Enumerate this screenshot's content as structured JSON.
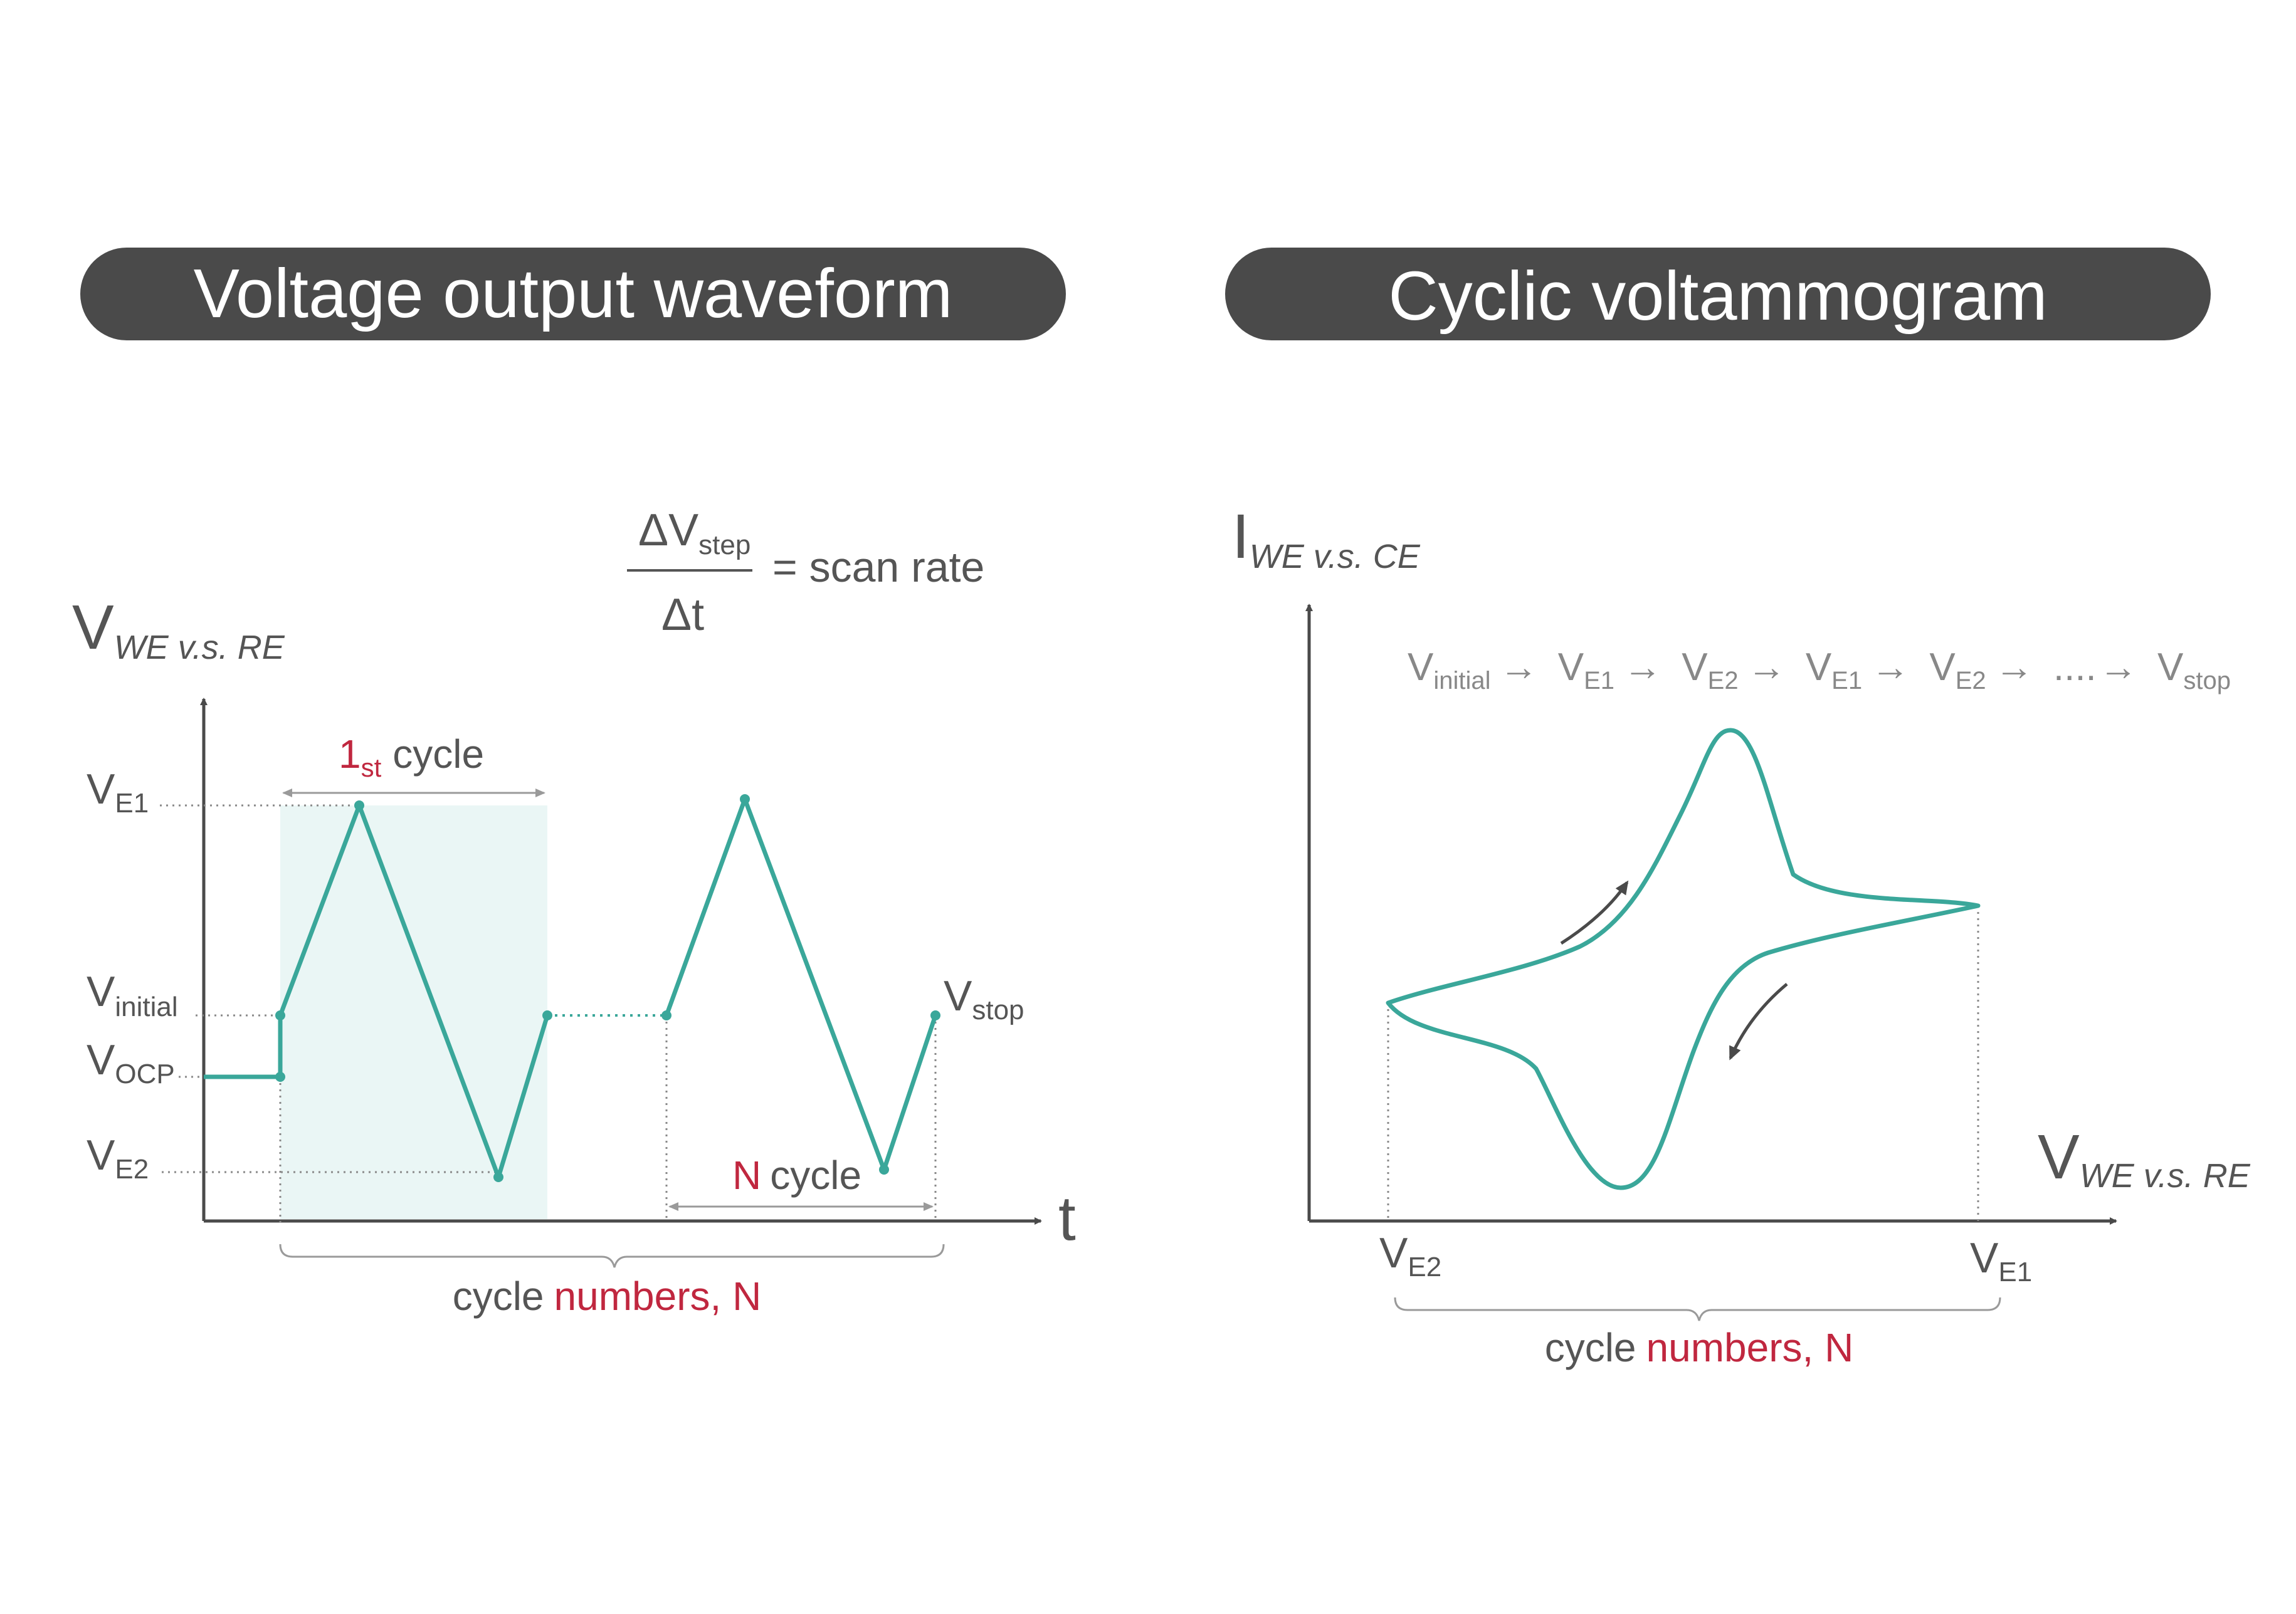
{
  "colors": {
    "accent": "#3aa79a",
    "highlight": "#c0273f",
    "dark": "#4a4a4a",
    "text": "#555555",
    "muted": "#888888",
    "shade": "#eaf6f5"
  },
  "left_panel": {
    "title": "Voltage output waveform",
    "y_axis": {
      "main": "V",
      "sub": "WE v.s. RE"
    },
    "x_axis": {
      "label": "t"
    },
    "scan_rate": {
      "numerator": "ΔV",
      "numerator_sub": "step",
      "denominator": "Δt",
      "equals": "= scan rate"
    },
    "levels": {
      "ve1": {
        "main": "V",
        "sub": "E1"
      },
      "vinitial": {
        "main": "V",
        "sub": "initial"
      },
      "vocp": {
        "main": "V",
        "sub": "OCP"
      },
      "ve2": {
        "main": "V",
        "sub": "E2"
      },
      "vstop": {
        "main": "V",
        "sub": "stop"
      }
    },
    "first_cycle": {
      "num": "1",
      "sub": "st",
      "word": "cycle"
    },
    "n_cycle": {
      "n": "N",
      "word": "cycle"
    },
    "cycle_numbers": {
      "word": "cycle",
      "rest": "numbers, N"
    }
  },
  "right_panel": {
    "title": "Cyclic voltammogram",
    "y_axis": {
      "main": "I",
      "sub": "WE v.s. CE"
    },
    "x_axis": {
      "main": "V",
      "sub": "WE v.s. RE"
    },
    "sequence": [
      {
        "main": "V",
        "sub": "initial"
      },
      {
        "main": "V",
        "sub": "E1"
      },
      {
        "main": "V",
        "sub": "E2"
      },
      {
        "main": "V",
        "sub": "E1"
      },
      {
        "main": "V",
        "sub": "E2"
      },
      {
        "main": "....",
        "sub": ""
      },
      {
        "main": "V",
        "sub": "stop"
      }
    ],
    "arrow_glyph": "→",
    "ve2": {
      "main": "V",
      "sub": "E2"
    },
    "ve1": {
      "main": "V",
      "sub": "E1"
    },
    "cycle_numbers": {
      "word": "cycle",
      "rest": "numbers, N"
    }
  }
}
